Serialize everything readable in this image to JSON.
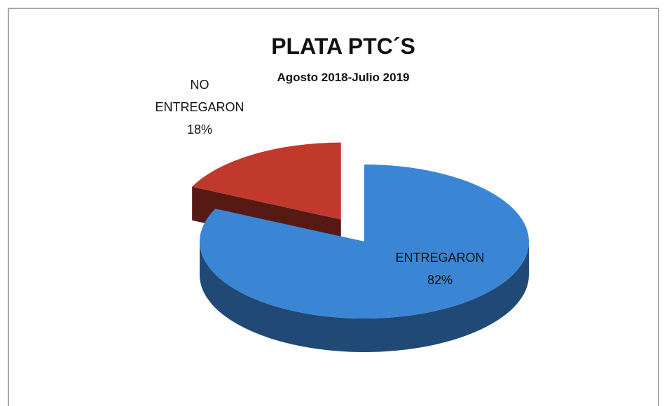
{
  "chart_data": {
    "type": "pie",
    "title": "PLATA PTC´S",
    "subtitle": "Agosto 2018-Julio 2019",
    "categories": [
      "ENTREGARON",
      "NO ENTREGARON"
    ],
    "values": [
      82,
      18
    ],
    "value_labels": [
      "82%",
      "18%"
    ],
    "colors": [
      "#3a86d5",
      "#c1382c"
    ]
  }
}
